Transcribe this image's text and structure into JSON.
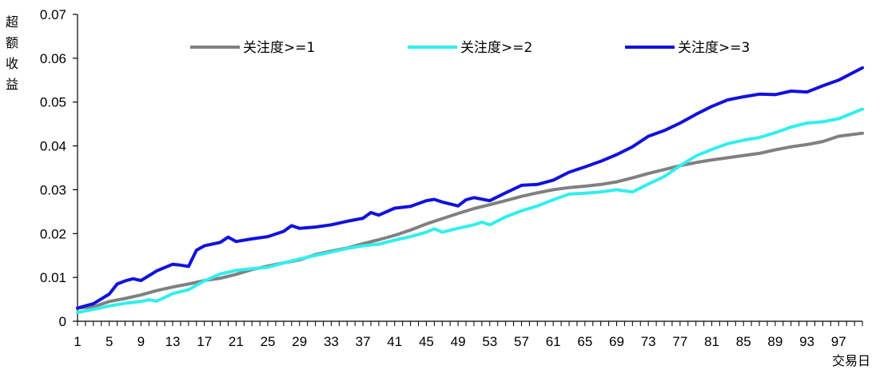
{
  "chart_data": {
    "type": "line",
    "title": "",
    "ylabel": "超额收益",
    "xlabel": "交易日",
    "ylim": [
      0,
      0.07
    ],
    "yticks": [
      "0",
      "0.01",
      "0.02",
      "0.03",
      "0.04",
      "0.05",
      "0.06",
      "0.07"
    ],
    "xlim": [
      1,
      100
    ],
    "xticks": [
      1,
      5,
      9,
      13,
      17,
      21,
      25,
      29,
      33,
      37,
      41,
      45,
      49,
      53,
      57,
      61,
      65,
      69,
      73,
      77,
      81,
      85,
      89,
      93,
      97
    ],
    "grid": false,
    "legend_position": "top",
    "series": [
      {
        "name": "关注度>=1",
        "color": "#808080",
        "points": [
          [
            1,
            0.003
          ],
          [
            3,
            0.0033
          ],
          [
            5,
            0.0045
          ],
          [
            7,
            0.0052
          ],
          [
            9,
            0.006
          ],
          [
            11,
            0.007
          ],
          [
            13,
            0.0078
          ],
          [
            15,
            0.0085
          ],
          [
            17,
            0.0093
          ],
          [
            19,
            0.0098
          ],
          [
            21,
            0.0107
          ],
          [
            23,
            0.0118
          ],
          [
            25,
            0.0126
          ],
          [
            27,
            0.0133
          ],
          [
            29,
            0.014
          ],
          [
            31,
            0.0152
          ],
          [
            33,
            0.016
          ],
          [
            35,
            0.0167
          ],
          [
            37,
            0.0177
          ],
          [
            39,
            0.0186
          ],
          [
            41,
            0.0196
          ],
          [
            43,
            0.0208
          ],
          [
            45,
            0.0222
          ],
          [
            47,
            0.0234
          ],
          [
            49,
            0.0246
          ],
          [
            51,
            0.0257
          ],
          [
            53,
            0.0266
          ],
          [
            55,
            0.0275
          ],
          [
            57,
            0.0285
          ],
          [
            59,
            0.0293
          ],
          [
            61,
            0.03
          ],
          [
            63,
            0.0305
          ],
          [
            65,
            0.0308
          ],
          [
            67,
            0.0312
          ],
          [
            69,
            0.0318
          ],
          [
            71,
            0.0327
          ],
          [
            73,
            0.0337
          ],
          [
            75,
            0.0346
          ],
          [
            77,
            0.0355
          ],
          [
            79,
            0.0362
          ],
          [
            81,
            0.0368
          ],
          [
            83,
            0.0373
          ],
          [
            85,
            0.0378
          ],
          [
            87,
            0.0383
          ],
          [
            89,
            0.0391
          ],
          [
            91,
            0.0398
          ],
          [
            93,
            0.0403
          ],
          [
            95,
            0.041
          ],
          [
            97,
            0.0422
          ],
          [
            100,
            0.0429
          ]
        ]
      },
      {
        "name": "关注度>=2",
        "color": "#33EEEE",
        "points": [
          [
            1,
            0.002
          ],
          [
            3,
            0.0027
          ],
          [
            5,
            0.0035
          ],
          [
            7,
            0.0041
          ],
          [
            9,
            0.0045
          ],
          [
            10,
            0.0049
          ],
          [
            11,
            0.0046
          ],
          [
            13,
            0.0063
          ],
          [
            15,
            0.0072
          ],
          [
            17,
            0.0092
          ],
          [
            19,
            0.0108
          ],
          [
            21,
            0.0116
          ],
          [
            23,
            0.012
          ],
          [
            25,
            0.0123
          ],
          [
            27,
            0.0133
          ],
          [
            29,
            0.0142
          ],
          [
            31,
            0.015
          ],
          [
            33,
            0.0158
          ],
          [
            35,
            0.0166
          ],
          [
            37,
            0.0172
          ],
          [
            39,
            0.0176
          ],
          [
            41,
            0.0185
          ],
          [
            43,
            0.0193
          ],
          [
            45,
            0.0203
          ],
          [
            46,
            0.0211
          ],
          [
            47,
            0.0203
          ],
          [
            49,
            0.0212
          ],
          [
            51,
            0.022
          ],
          [
            52,
            0.0226
          ],
          [
            53,
            0.022
          ],
          [
            55,
            0.0238
          ],
          [
            57,
            0.0252
          ],
          [
            59,
            0.0263
          ],
          [
            61,
            0.0277
          ],
          [
            63,
            0.029
          ],
          [
            65,
            0.0292
          ],
          [
            67,
            0.0295
          ],
          [
            69,
            0.03
          ],
          [
            71,
            0.0295
          ],
          [
            73,
            0.0313
          ],
          [
            75,
            0.033
          ],
          [
            77,
            0.0355
          ],
          [
            79,
            0.0377
          ],
          [
            81,
            0.0392
          ],
          [
            83,
            0.0405
          ],
          [
            85,
            0.0413
          ],
          [
            87,
            0.0419
          ],
          [
            89,
            0.043
          ],
          [
            91,
            0.0443
          ],
          [
            93,
            0.0452
          ],
          [
            95,
            0.0455
          ],
          [
            97,
            0.0462
          ],
          [
            100,
            0.0484
          ]
        ]
      },
      {
        "name": "关注度>=3",
        "color": "#1111DD",
        "points": [
          [
            1,
            0.003
          ],
          [
            3,
            0.004
          ],
          [
            5,
            0.0062
          ],
          [
            6,
            0.0085
          ],
          [
            7,
            0.0092
          ],
          [
            8,
            0.0097
          ],
          [
            9,
            0.0093
          ],
          [
            11,
            0.0115
          ],
          [
            13,
            0.013
          ],
          [
            14,
            0.0128
          ],
          [
            15,
            0.0125
          ],
          [
            16,
            0.0162
          ],
          [
            17,
            0.0172
          ],
          [
            19,
            0.018
          ],
          [
            20,
            0.0192
          ],
          [
            21,
            0.0182
          ],
          [
            23,
            0.0188
          ],
          [
            25,
            0.0193
          ],
          [
            27,
            0.0205
          ],
          [
            28,
            0.0218
          ],
          [
            29,
            0.0212
          ],
          [
            31,
            0.0215
          ],
          [
            33,
            0.022
          ],
          [
            35,
            0.0228
          ],
          [
            37,
            0.0235
          ],
          [
            38,
            0.0248
          ],
          [
            39,
            0.0242
          ],
          [
            41,
            0.0258
          ],
          [
            43,
            0.0262
          ],
          [
            45,
            0.0275
          ],
          [
            46,
            0.0278
          ],
          [
            47,
            0.0272
          ],
          [
            49,
            0.0263
          ],
          [
            50,
            0.0277
          ],
          [
            51,
            0.0282
          ],
          [
            53,
            0.0275
          ],
          [
            55,
            0.0293
          ],
          [
            57,
            0.031
          ],
          [
            59,
            0.0312
          ],
          [
            61,
            0.0322
          ],
          [
            63,
            0.034
          ],
          [
            65,
            0.0352
          ],
          [
            67,
            0.0365
          ],
          [
            69,
            0.038
          ],
          [
            71,
            0.0398
          ],
          [
            73,
            0.0422
          ],
          [
            75,
            0.0435
          ],
          [
            77,
            0.0452
          ],
          [
            79,
            0.0472
          ],
          [
            81,
            0.049
          ],
          [
            83,
            0.0505
          ],
          [
            85,
            0.0512
          ],
          [
            87,
            0.0518
          ],
          [
            89,
            0.0517
          ],
          [
            91,
            0.0525
          ],
          [
            93,
            0.0523
          ],
          [
            95,
            0.0537
          ],
          [
            97,
            0.055
          ],
          [
            100,
            0.0578
          ]
        ]
      }
    ]
  }
}
